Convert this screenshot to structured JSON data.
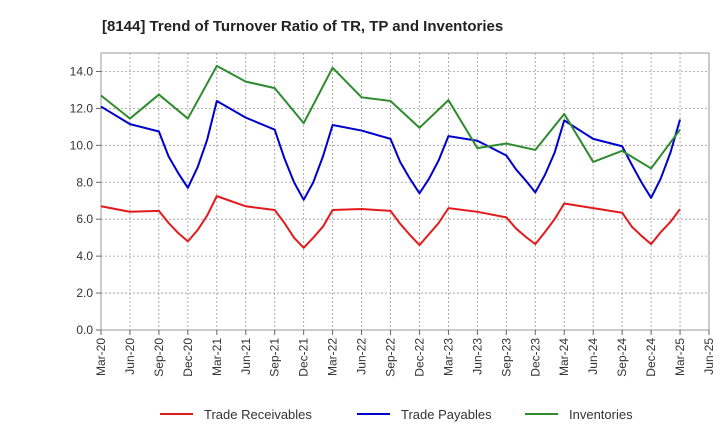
{
  "chart_data": {
    "type": "line",
    "title": "[8144]  Trend of Turnover Ratio of TR, TP and Inventories",
    "xlabel": "",
    "ylabel": "",
    "ylim": [
      0,
      15
    ],
    "yticks": [
      0,
      2,
      4,
      6,
      8,
      10,
      12,
      14
    ],
    "ytick_labels": [
      "0.0",
      "2.0",
      "4.0",
      "6.0",
      "8.0",
      "10.0",
      "12.0",
      "14.0"
    ],
    "xtick_labels": [
      "Mar-20",
      "Jun-20",
      "Sep-20",
      "Dec-20",
      "Mar-21",
      "Jun-21",
      "Sep-21",
      "Dec-21",
      "Mar-22",
      "Jun-22",
      "Sep-22",
      "Dec-22",
      "Mar-23",
      "Jun-23",
      "Sep-23",
      "Dec-23",
      "Mar-24",
      "Jun-24",
      "Sep-24",
      "Dec-24",
      "Mar-25",
      "Jun-25"
    ],
    "x": [
      "Mar-20",
      "Apr-20",
      "May-20",
      "Jun-20",
      "Jul-20",
      "Aug-20",
      "Sep-20",
      "Oct-20",
      "Nov-20",
      "Dec-20",
      "Jan-21",
      "Feb-21",
      "Mar-21",
      "Apr-21",
      "May-21",
      "Jun-21",
      "Jul-21",
      "Aug-21",
      "Sep-21",
      "Oct-21",
      "Nov-21",
      "Dec-21",
      "Jan-22",
      "Feb-22",
      "Mar-22",
      "Apr-22",
      "May-22",
      "Jun-22",
      "Jul-22",
      "Aug-22",
      "Sep-22",
      "Oct-22",
      "Nov-22",
      "Dec-22",
      "Jan-23",
      "Feb-23",
      "Mar-23",
      "Apr-23",
      "May-23",
      "Jun-23",
      "Jul-23",
      "Aug-23",
      "Sep-23",
      "Oct-23",
      "Nov-23",
      "Dec-23",
      "Jan-24",
      "Feb-24",
      "Mar-24",
      "Apr-24",
      "May-24",
      "Jun-24",
      "Jul-24",
      "Aug-24",
      "Sep-24",
      "Oct-24",
      "Nov-24",
      "Dec-24",
      "Jan-25",
      "Feb-25",
      "Mar-25"
    ],
    "grid": true,
    "legend_position": "bottom",
    "series": [
      {
        "name": "Trade Receivables",
        "color": "#e31a1c",
        "points": [
          [
            "Mar-20",
            6.7
          ],
          [
            "Jun-20",
            6.4
          ],
          [
            "Sep-20",
            6.45
          ],
          [
            "Oct-20",
            5.8
          ],
          [
            "Nov-20",
            5.25
          ],
          [
            "Dec-20",
            4.8
          ],
          [
            "Jan-21",
            5.4
          ],
          [
            "Feb-21",
            6.2
          ],
          [
            "Mar-21",
            7.25
          ],
          [
            "Jun-21",
            6.7
          ],
          [
            "Sep-21",
            6.5
          ],
          [
            "Oct-21",
            5.8
          ],
          [
            "Nov-21",
            5.0
          ],
          [
            "Dec-21",
            4.45
          ],
          [
            "Jan-22",
            5.0
          ],
          [
            "Feb-22",
            5.6
          ],
          [
            "Mar-22",
            6.5
          ],
          [
            "Jun-22",
            6.55
          ],
          [
            "Sep-22",
            6.45
          ],
          [
            "Oct-22",
            5.75
          ],
          [
            "Nov-22",
            5.15
          ],
          [
            "Dec-22",
            4.6
          ],
          [
            "Jan-23",
            5.2
          ],
          [
            "Feb-23",
            5.8
          ],
          [
            "Mar-23",
            6.6
          ],
          [
            "Jun-23",
            6.4
          ],
          [
            "Sep-23",
            6.1
          ],
          [
            "Oct-23",
            5.5
          ],
          [
            "Nov-23",
            5.05
          ],
          [
            "Dec-23",
            4.65
          ],
          [
            "Jan-24",
            5.3
          ],
          [
            "Feb-24",
            6.0
          ],
          [
            "Mar-24",
            6.85
          ],
          [
            "Jun-24",
            6.6
          ],
          [
            "Sep-24",
            6.35
          ],
          [
            "Oct-24",
            5.6
          ],
          [
            "Nov-24",
            5.1
          ],
          [
            "Dec-24",
            4.65
          ],
          [
            "Jan-25",
            5.3
          ],
          [
            "Feb-25",
            5.85
          ],
          [
            "Mar-25",
            6.55
          ]
        ]
      },
      {
        "name": "Trade Payables",
        "color": "#0000cc",
        "points": [
          [
            "Mar-20",
            12.1
          ],
          [
            "Jun-20",
            11.15
          ],
          [
            "Sep-20",
            10.75
          ],
          [
            "Oct-20",
            9.4
          ],
          [
            "Nov-20",
            8.5
          ],
          [
            "Dec-20",
            7.7
          ],
          [
            "Jan-21",
            8.8
          ],
          [
            "Feb-21",
            10.3
          ],
          [
            "Mar-21",
            12.4
          ],
          [
            "Jun-21",
            11.5
          ],
          [
            "Sep-21",
            10.85
          ],
          [
            "Oct-21",
            9.3
          ],
          [
            "Nov-21",
            8.0
          ],
          [
            "Dec-21",
            7.05
          ],
          [
            "Jan-22",
            8.0
          ],
          [
            "Feb-22",
            9.4
          ],
          [
            "Mar-22",
            11.1
          ],
          [
            "Jun-22",
            10.8
          ],
          [
            "Sep-22",
            10.35
          ],
          [
            "Oct-22",
            9.1
          ],
          [
            "Nov-22",
            8.2
          ],
          [
            "Dec-22",
            7.4
          ],
          [
            "Jan-23",
            8.2
          ],
          [
            "Feb-23",
            9.2
          ],
          [
            "Mar-23",
            10.5
          ],
          [
            "Jun-23",
            10.25
          ],
          [
            "Sep-23",
            9.45
          ],
          [
            "Oct-23",
            8.7
          ],
          [
            "Nov-23",
            8.1
          ],
          [
            "Dec-23",
            7.45
          ],
          [
            "Jan-24",
            8.4
          ],
          [
            "Feb-24",
            9.6
          ],
          [
            "Mar-24",
            11.35
          ],
          [
            "Jun-24",
            10.35
          ],
          [
            "Sep-24",
            9.95
          ],
          [
            "Oct-24",
            8.95
          ],
          [
            "Nov-24",
            8.0
          ],
          [
            "Dec-24",
            7.15
          ],
          [
            "Jan-25",
            8.2
          ],
          [
            "Feb-25",
            9.6
          ],
          [
            "Mar-25",
            11.4
          ]
        ]
      },
      {
        "name": "Inventories",
        "color": "#2e8b2e",
        "points": [
          [
            "Mar-20",
            12.7
          ],
          [
            "Jun-20",
            11.45
          ],
          [
            "Sep-20",
            12.75
          ],
          [
            "Dec-20",
            11.45
          ],
          [
            "Mar-21",
            14.3
          ],
          [
            "Jun-21",
            13.45
          ],
          [
            "Sep-21",
            13.1
          ],
          [
            "Dec-21",
            11.2
          ],
          [
            "Mar-22",
            14.2
          ],
          [
            "Jun-22",
            12.6
          ],
          [
            "Sep-22",
            12.4
          ],
          [
            "Dec-22",
            10.95
          ],
          [
            "Mar-23",
            12.45
          ],
          [
            "Jun-23",
            9.85
          ],
          [
            "Sep-23",
            10.1
          ],
          [
            "Dec-23",
            9.75
          ],
          [
            "Mar-24",
            11.7
          ],
          [
            "Jun-24",
            9.1
          ],
          [
            "Sep-24",
            9.7
          ],
          [
            "Dec-24",
            8.75
          ],
          [
            "Mar-25",
            10.85
          ]
        ]
      }
    ]
  }
}
